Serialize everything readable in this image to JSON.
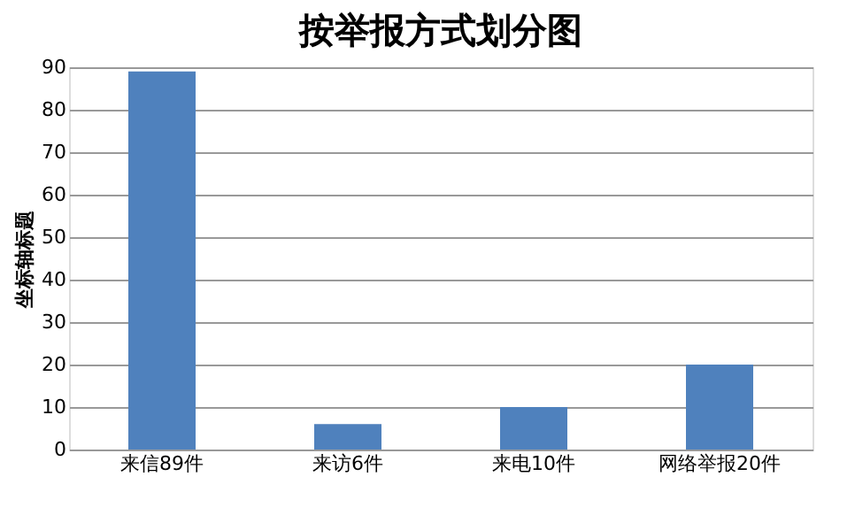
{
  "chart_data": {
    "type": "bar",
    "title": "按举报方式划分图",
    "ylabel": "坐标轴标题",
    "categories": [
      "来信89件",
      "来访6件",
      "来电10件",
      "网络举报20件"
    ],
    "values": [
      89,
      6,
      10,
      20
    ],
    "color": "#4f81bd",
    "ylim": [
      0,
      90
    ],
    "yticks": [
      0,
      10,
      20,
      30,
      40,
      50,
      60,
      70,
      80,
      90
    ],
    "grid": "y"
  }
}
